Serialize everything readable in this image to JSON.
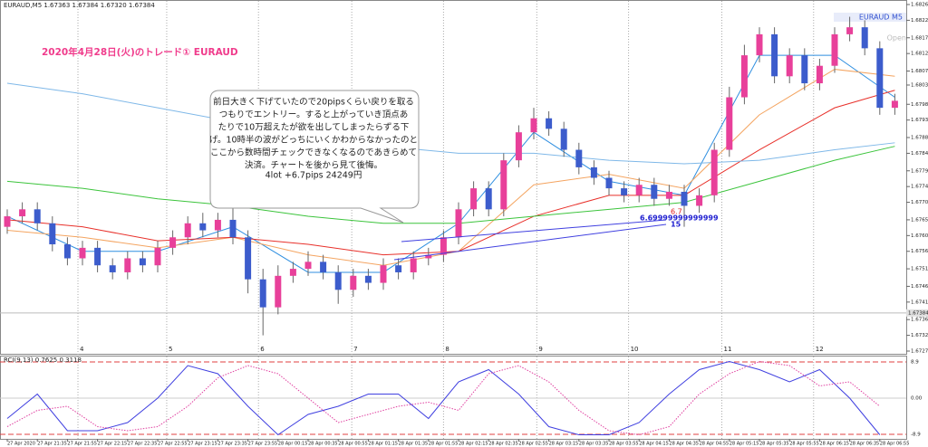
{
  "chart_data": {
    "type": "candlestick",
    "header": "EURAUD,M5  1.67363 1.67384 1.67320 1.67384",
    "symbol_label": "EURAUD M5",
    "open_label": "Open",
    "title": "2020年4月28日(火)のトレード①  EURAUD",
    "annotation": {
      "lines": [
        "前日大きく下げていたので20pipsくらい戻りを取る",
        "つもりでエントリー。すると上がっていき頂点あ",
        "たりで10万超えたが欲を出してしまったらずる下",
        "げ。10時半の波がどっちにいくかわからなかったのと",
        "ここから数時間チェックできなくなるのであきらめて",
        "決済。チャートを後から見て後悔。"
      ],
      "result": "4lot  +6.7pips   24249円"
    },
    "trade_labels": [
      {
        "text": "6.7",
        "color": "#e02020"
      },
      {
        "text": "6.69999999999999",
        "color": "#2020d0"
      },
      {
        "text": "15",
        "color": "#2020d0"
      }
    ],
    "up_color": "#e8409a",
    "down_color": "#3c5ccc",
    "open": [
      1.6763,
      1.6766,
      1.6768,
      1.6764,
      1.6758,
      1.6754,
      1.6757,
      1.6752,
      1.675,
      1.6754,
      1.6752,
      1.6757,
      1.676,
      1.6764,
      1.6762,
      1.6765,
      1.676,
      1.6748,
      1.674,
      1.6749,
      1.6751,
      1.6753,
      1.675,
      1.6745,
      1.6749,
      1.6747,
      1.6752,
      1.675,
      1.6754,
      1.6755,
      1.676,
      1.6768,
      1.6774,
      1.6768,
      1.6782,
      1.679,
      1.6794,
      1.6791,
      1.6785,
      1.678,
      1.6777,
      1.6774,
      1.6772,
      1.6775,
      1.6771,
      1.6773,
      1.6769,
      1.6772,
      1.6785,
      1.68,
      1.6812,
      1.6818,
      1.6806,
      1.6812,
      1.6804,
      1.6809,
      1.6818,
      1.682,
      1.6814,
      1.6797
    ],
    "close": [
      1.6766,
      1.6768,
      1.6764,
      1.6758,
      1.6754,
      1.6757,
      1.6752,
      1.675,
      1.6754,
      1.6752,
      1.6757,
      1.676,
      1.6764,
      1.6762,
      1.6765,
      1.676,
      1.6748,
      1.674,
      1.6749,
      1.6751,
      1.6753,
      1.675,
      1.6745,
      1.6749,
      1.6747,
      1.6752,
      1.675,
      1.6754,
      1.6755,
      1.676,
      1.6768,
      1.6774,
      1.6768,
      1.6782,
      1.679,
      1.6794,
      1.6791,
      1.6785,
      1.678,
      1.6777,
      1.6774,
      1.6772,
      1.6775,
      1.6771,
      1.6773,
      1.6769,
      1.6772,
      1.6785,
      1.68,
      1.6812,
      1.6818,
      1.6806,
      1.6812,
      1.6804,
      1.6809,
      1.6818,
      1.682,
      1.6814,
      1.6797,
      1.6799
    ],
    "high": [
      1.6768,
      1.677,
      1.677,
      1.6766,
      1.676,
      1.6759,
      1.6759,
      1.6754,
      1.6756,
      1.6756,
      1.6759,
      1.6762,
      1.6766,
      1.6767,
      1.6767,
      1.6769,
      1.6762,
      1.6751,
      1.6752,
      1.6753,
      1.6756,
      1.6755,
      1.6752,
      1.6751,
      1.6751,
      1.6754,
      1.6754,
      1.6756,
      1.6757,
      1.6762,
      1.677,
      1.6776,
      1.6776,
      1.6784,
      1.6792,
      1.6797,
      1.6796,
      1.6793,
      1.6787,
      1.6782,
      1.6779,
      1.6776,
      1.6777,
      1.6777,
      1.6775,
      1.6775,
      1.6774,
      1.6787,
      1.6803,
      1.6815,
      1.682,
      1.682,
      1.6814,
      1.6814,
      1.6811,
      1.682,
      1.6823,
      1.6822,
      1.6816,
      1.6801
    ],
    "low": [
      1.6761,
      1.6764,
      1.6762,
      1.6756,
      1.6752,
      1.6752,
      1.675,
      1.6748,
      1.6748,
      1.675,
      1.675,
      1.6755,
      1.6758,
      1.676,
      1.676,
      1.6758,
      1.6744,
      1.6732,
      1.6738,
      1.6747,
      1.6749,
      1.6748,
      1.6741,
      1.6743,
      1.6745,
      1.6745,
      1.6748,
      1.6748,
      1.6752,
      1.6753,
      1.6758,
      1.6766,
      1.6766,
      1.6766,
      1.678,
      1.6788,
      1.6789,
      1.6783,
      1.6778,
      1.6775,
      1.6772,
      1.677,
      1.677,
      1.6769,
      1.6769,
      1.6763,
      1.6767,
      1.677,
      1.6783,
      1.6798,
      1.681,
      1.6804,
      1.6804,
      1.6802,
      1.6802,
      1.6807,
      1.6816,
      1.6812,
      1.6795,
      1.6795
    ],
    "ylim": [
      1.67275,
      1.68265
    ],
    "yticks": [
      {
        "value": 1.68265,
        "label": "1.68265"
      },
      {
        "value": 1.6822,
        "label": "1.68220"
      },
      {
        "value": 1.6817,
        "label": "1.68170"
      },
      {
        "value": 1.68125,
        "label": "1.68125"
      },
      {
        "value": 1.68075,
        "label": "1.68075"
      },
      {
        "value": 1.68035,
        "label": "1.68035"
      },
      {
        "value": 1.6798,
        "label": "1.67980"
      },
      {
        "value": 1.67935,
        "label": "1.67935"
      },
      {
        "value": 1.67885,
        "label": "1.67885"
      },
      {
        "value": 1.6784,
        "label": "1.67840"
      },
      {
        "value": 1.6779,
        "label": "1.67790"
      },
      {
        "value": 1.67745,
        "label": "1.67745"
      },
      {
        "value": 1.677,
        "label": "1.67700"
      },
      {
        "value": 1.6765,
        "label": "1.67650"
      },
      {
        "value": 1.67605,
        "label": "1.67605"
      },
      {
        "value": 1.6756,
        "label": "1.67560"
      },
      {
        "value": 1.6751,
        "label": "1.67510"
      },
      {
        "value": 1.6746,
        "label": "1.67460"
      },
      {
        "value": 1.67415,
        "label": "1.67415"
      },
      {
        "value": 1.67365,
        "label": "1.67365"
      },
      {
        "value": 1.6732,
        "label": "1.67320"
      },
      {
        "value": 1.67275,
        "label": "1.67275"
      }
    ],
    "current_price": {
      "value": 1.67384,
      "label": "1.67384"
    },
    "xticks": [
      {
        "value": 0,
        "label": "27 Apr 2020"
      },
      {
        "value": 2,
        "label": "27 Apr 21:35"
      },
      {
        "value": 4,
        "label": "27 Apr 21:55"
      },
      {
        "value": 6,
        "label": "27 Apr 22:15"
      },
      {
        "value": 8,
        "label": "27 Apr 22:35"
      },
      {
        "value": 10,
        "label": "27 Apr 22:55"
      },
      {
        "value": 12,
        "label": "27 Apr 23:15"
      },
      {
        "value": 14,
        "label": "27 Apr 23:35"
      },
      {
        "value": 16,
        "label": "27 Apr 23:55"
      },
      {
        "value": 18,
        "label": "28 Apr 00:15"
      },
      {
        "value": 20,
        "label": "28 Apr 00:35"
      },
      {
        "value": 22,
        "label": "28 Apr 00:55"
      },
      {
        "value": 24,
        "label": "28 Apr 01:15"
      },
      {
        "value": 26,
        "label": "28 Apr 01:35"
      },
      {
        "value": 28,
        "label": "28 Apr 01:55"
      },
      {
        "value": 30,
        "label": "28 Apr 02:15"
      },
      {
        "value": 32,
        "label": "28 Apr 02:35"
      },
      {
        "value": 34,
        "label": "28 Apr 02:55"
      },
      {
        "value": 36,
        "label": "28 Apr 03:15"
      },
      {
        "value": 38,
        "label": "28 Apr 03:35"
      },
      {
        "value": 40,
        "label": "28 Apr 03:55"
      },
      {
        "value": 42,
        "label": "28 Apr 04:15"
      },
      {
        "value": 44,
        "label": "28 Apr 04:35"
      },
      {
        "value": 46,
        "label": "28 Apr 04:55"
      },
      {
        "value": 48,
        "label": "28 Apr 05:15"
      },
      {
        "value": 50,
        "label": "28 Apr 05:35"
      },
      {
        "value": 52,
        "label": "28 Apr 05:55"
      },
      {
        "value": 54,
        "label": "28 Apr 06:15"
      },
      {
        "value": 56,
        "label": "28 Apr 06:35"
      },
      {
        "value": 58,
        "label": "28 Apr 06:55"
      }
    ],
    "sessions": [
      {
        "value": 4.7,
        "label": "4"
      },
      {
        "value": 10.6,
        "label": "5"
      },
      {
        "value": 16.7,
        "label": "6"
      },
      {
        "value": 22.9,
        "label": "7"
      },
      {
        "value": 29,
        "label": "8"
      },
      {
        "value": 35.2,
        "label": "9"
      },
      {
        "value": 41.3,
        "label": "10"
      },
      {
        "value": 47.5,
        "label": "11"
      },
      {
        "value": 53.6,
        "label": "12"
      }
    ],
    "series": [
      {
        "color": "#2f8fe0",
        "x": [
          0,
          5,
          10,
          15,
          20,
          25,
          30,
          35,
          40,
          45,
          50,
          55,
          59
        ],
        "values": [
          1.6766,
          1.6756,
          1.6756,
          1.6763,
          1.675,
          1.675,
          1.6764,
          1.679,
          1.6776,
          1.6772,
          1.6812,
          1.6812,
          1.68
        ]
      },
      {
        "color": "#f4a460",
        "x": [
          0,
          5,
          10,
          15,
          20,
          25,
          30,
          35,
          40,
          45,
          50,
          55,
          59
        ],
        "values": [
          1.6762,
          1.676,
          1.6757,
          1.676,
          1.6755,
          1.6752,
          1.6756,
          1.6775,
          1.6778,
          1.6774,
          1.6795,
          1.6808,
          1.6806
        ]
      },
      {
        "color": "#e8302a",
        "x": [
          0,
          5,
          10,
          15,
          20,
          25,
          30,
          35,
          40,
          45,
          50,
          55,
          59
        ],
        "values": [
          1.6765,
          1.6763,
          1.6759,
          1.676,
          1.6758,
          1.6755,
          1.6756,
          1.6766,
          1.6772,
          1.6772,
          1.6785,
          1.6797,
          1.6802
        ]
      },
      {
        "color": "#3cc43c",
        "x": [
          0,
          5,
          10,
          15,
          20,
          25,
          30,
          35,
          40,
          45,
          50,
          55,
          59
        ],
        "values": [
          1.6776,
          1.6774,
          1.6771,
          1.6769,
          1.6766,
          1.6764,
          1.6764,
          1.6766,
          1.6768,
          1.677,
          1.6776,
          1.6782,
          1.6786
        ]
      },
      {
        "color": "#7fb8e8",
        "x": [
          0,
          5,
          10,
          15,
          20,
          25,
          30,
          35,
          40,
          45,
          50,
          55,
          59
        ],
        "values": [
          1.6804,
          1.6801,
          1.6797,
          1.6793,
          1.6789,
          1.6786,
          1.6784,
          1.6784,
          1.6782,
          1.6781,
          1.6782,
          1.6785,
          1.6787
        ]
      }
    ],
    "rci": {
      "title": "RCI(9,13) 0.7625 0.3118",
      "ylim": [
        -10,
        10
      ],
      "yticks": [
        8.9,
        {
          "value": 0,
          "label": "0.00"
        },
        -8.9
      ],
      "series": [
        {
          "color": "#4040e0",
          "x": [
            0,
            2,
            4,
            6,
            8,
            10,
            12,
            14,
            16,
            18,
            20,
            22,
            24,
            26,
            28,
            30,
            32,
            34,
            36,
            38,
            40,
            42,
            44,
            46,
            48,
            50,
            52,
            54,
            56,
            58
          ],
          "values": [
            -5,
            1,
            -8,
            -8,
            -6,
            0,
            8,
            6,
            -2,
            -9,
            -4,
            -2,
            1,
            1,
            -5,
            4,
            7,
            1,
            -7,
            -9,
            -9,
            -6,
            1,
            7,
            9,
            7,
            4,
            7,
            0,
            -9
          ]
        },
        {
          "color": "#e040a0",
          "x": [
            0,
            2,
            4,
            6,
            8,
            10,
            12,
            14,
            16,
            18,
            20,
            22,
            24,
            26,
            28,
            30,
            32,
            34,
            36,
            38,
            40,
            42,
            44,
            46,
            48,
            50,
            52,
            54,
            56,
            58
          ],
          "values": [
            -7,
            -3,
            -2,
            -7,
            -8,
            -7,
            -2,
            5,
            8,
            6,
            0,
            -6,
            -4,
            -2,
            -1,
            -3,
            6,
            8,
            4,
            -3,
            -8,
            -9,
            -7,
            1,
            6,
            9,
            8,
            3,
            4,
            -2
          ]
        }
      ]
    }
  }
}
